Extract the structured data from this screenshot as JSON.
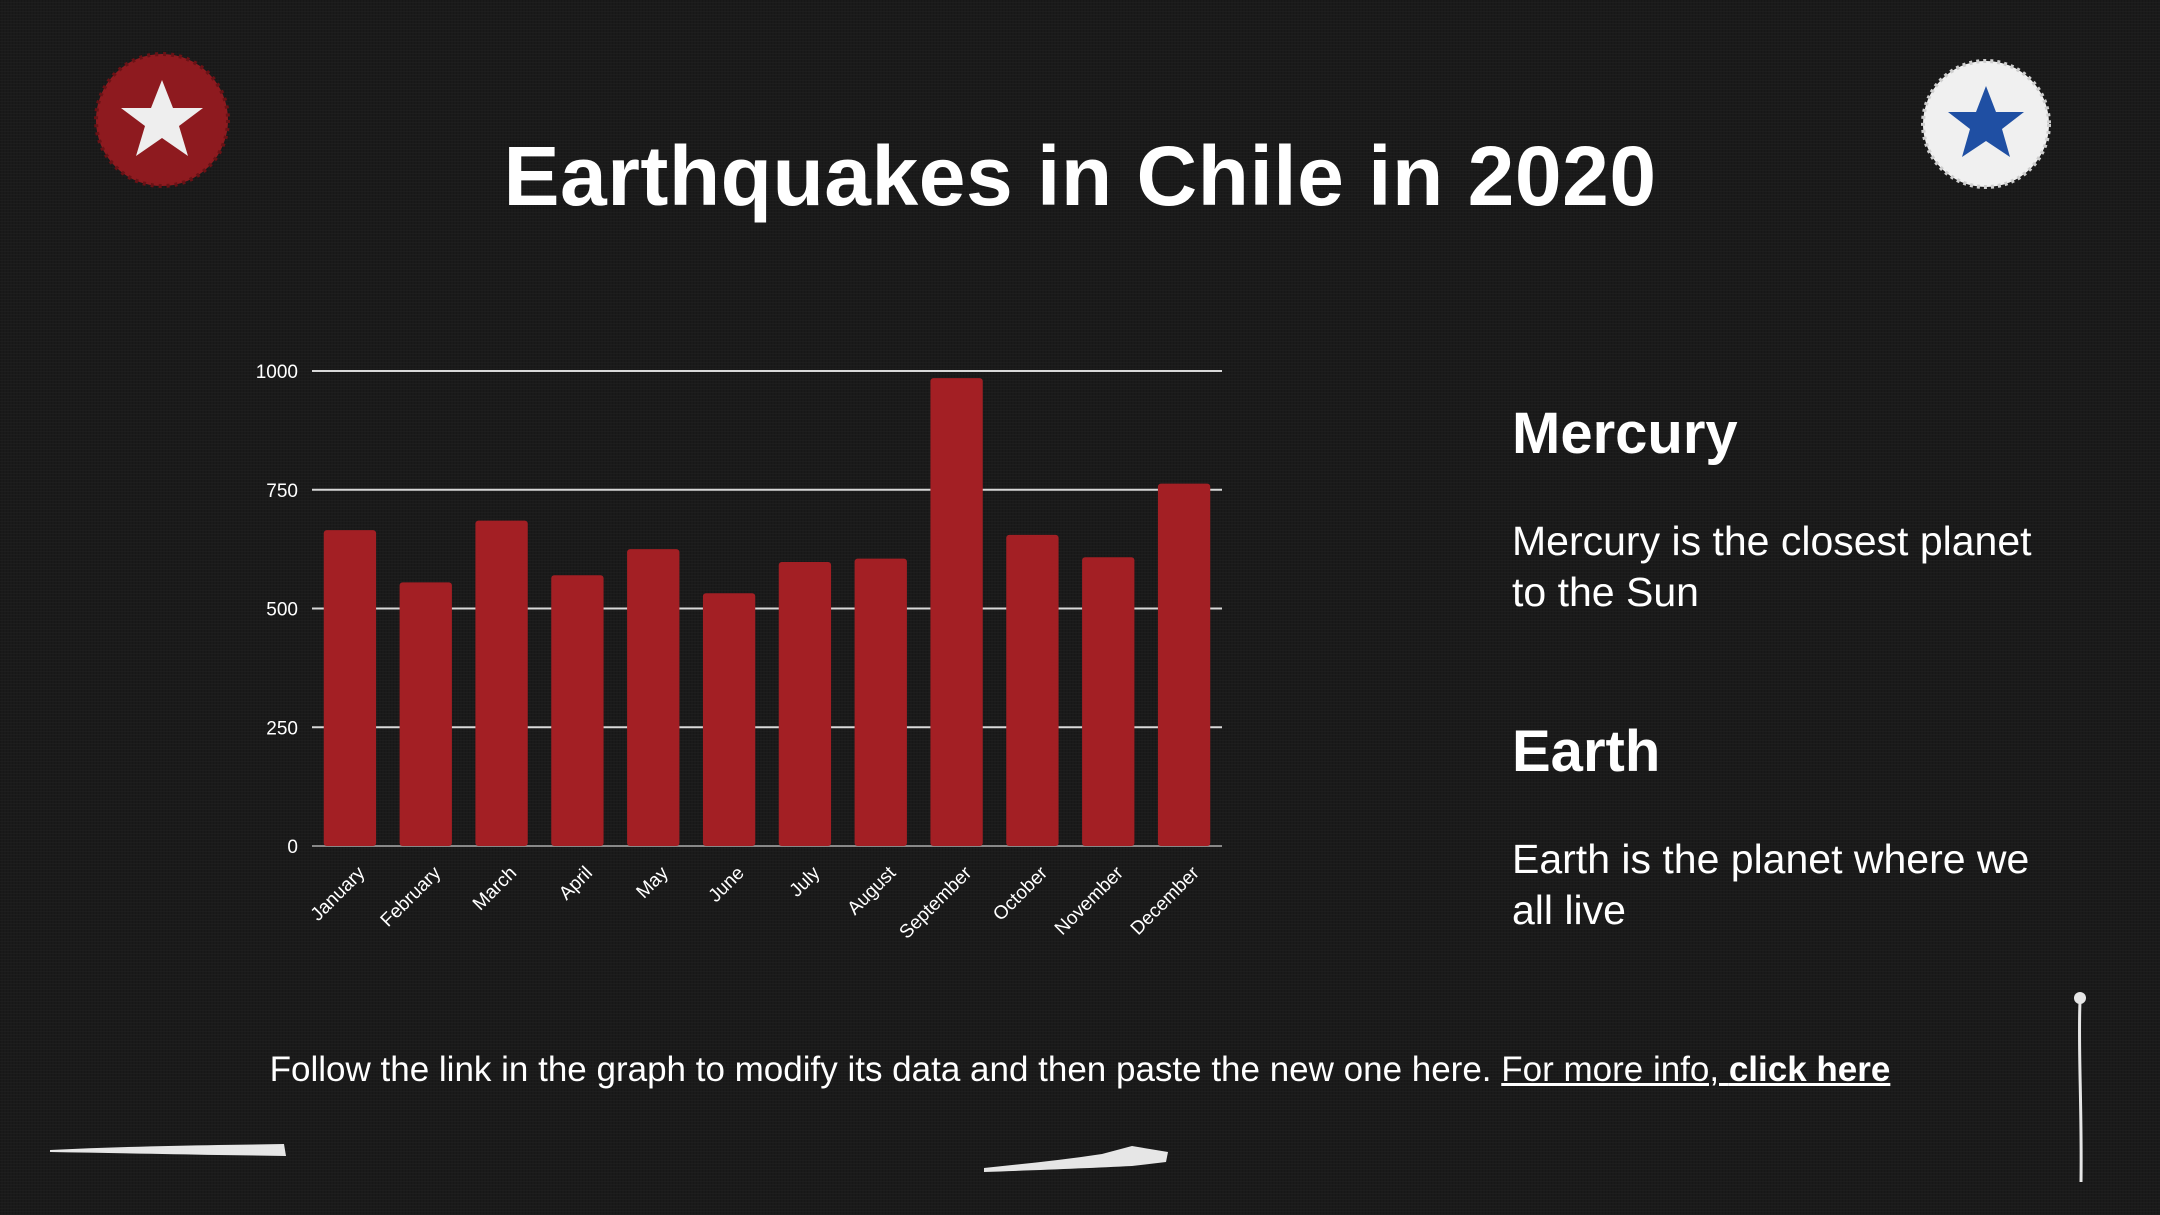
{
  "title": "Earthquakes in Chile in 2020",
  "colors": {
    "bar": "#a31f24",
    "background": "#1a1a1a",
    "text": "#ffffff",
    "left_badge": "#8e1a1f",
    "right_badge_star": "#1f4fa3"
  },
  "icons": {
    "left_badge": "star-icon",
    "right_badge": "star-icon"
  },
  "chart_data": {
    "type": "bar",
    "title": "",
    "xlabel": "",
    "ylabel": "",
    "ylim": [
      0,
      1000
    ],
    "yticks": [
      0,
      250,
      500,
      750,
      1000
    ],
    "grid": true,
    "legend": "none",
    "categories": [
      "January",
      "February",
      "March",
      "April",
      "May",
      "June",
      "July",
      "August",
      "September",
      "October",
      "November",
      "December"
    ],
    "values": [
      665,
      555,
      685,
      570,
      625,
      532,
      598,
      605,
      985,
      655,
      608,
      763
    ]
  },
  "side": [
    {
      "heading": "Mercury",
      "text": "Mercury is the closest planet to the Sun"
    },
    {
      "heading": "Earth",
      "text": "Earth is the planet where we all live"
    }
  ],
  "footer": {
    "text": "Follow the link in the graph to modify its data and then paste the new one here. ",
    "link_prefix": "For more info, ",
    "link_strong": "click here"
  }
}
